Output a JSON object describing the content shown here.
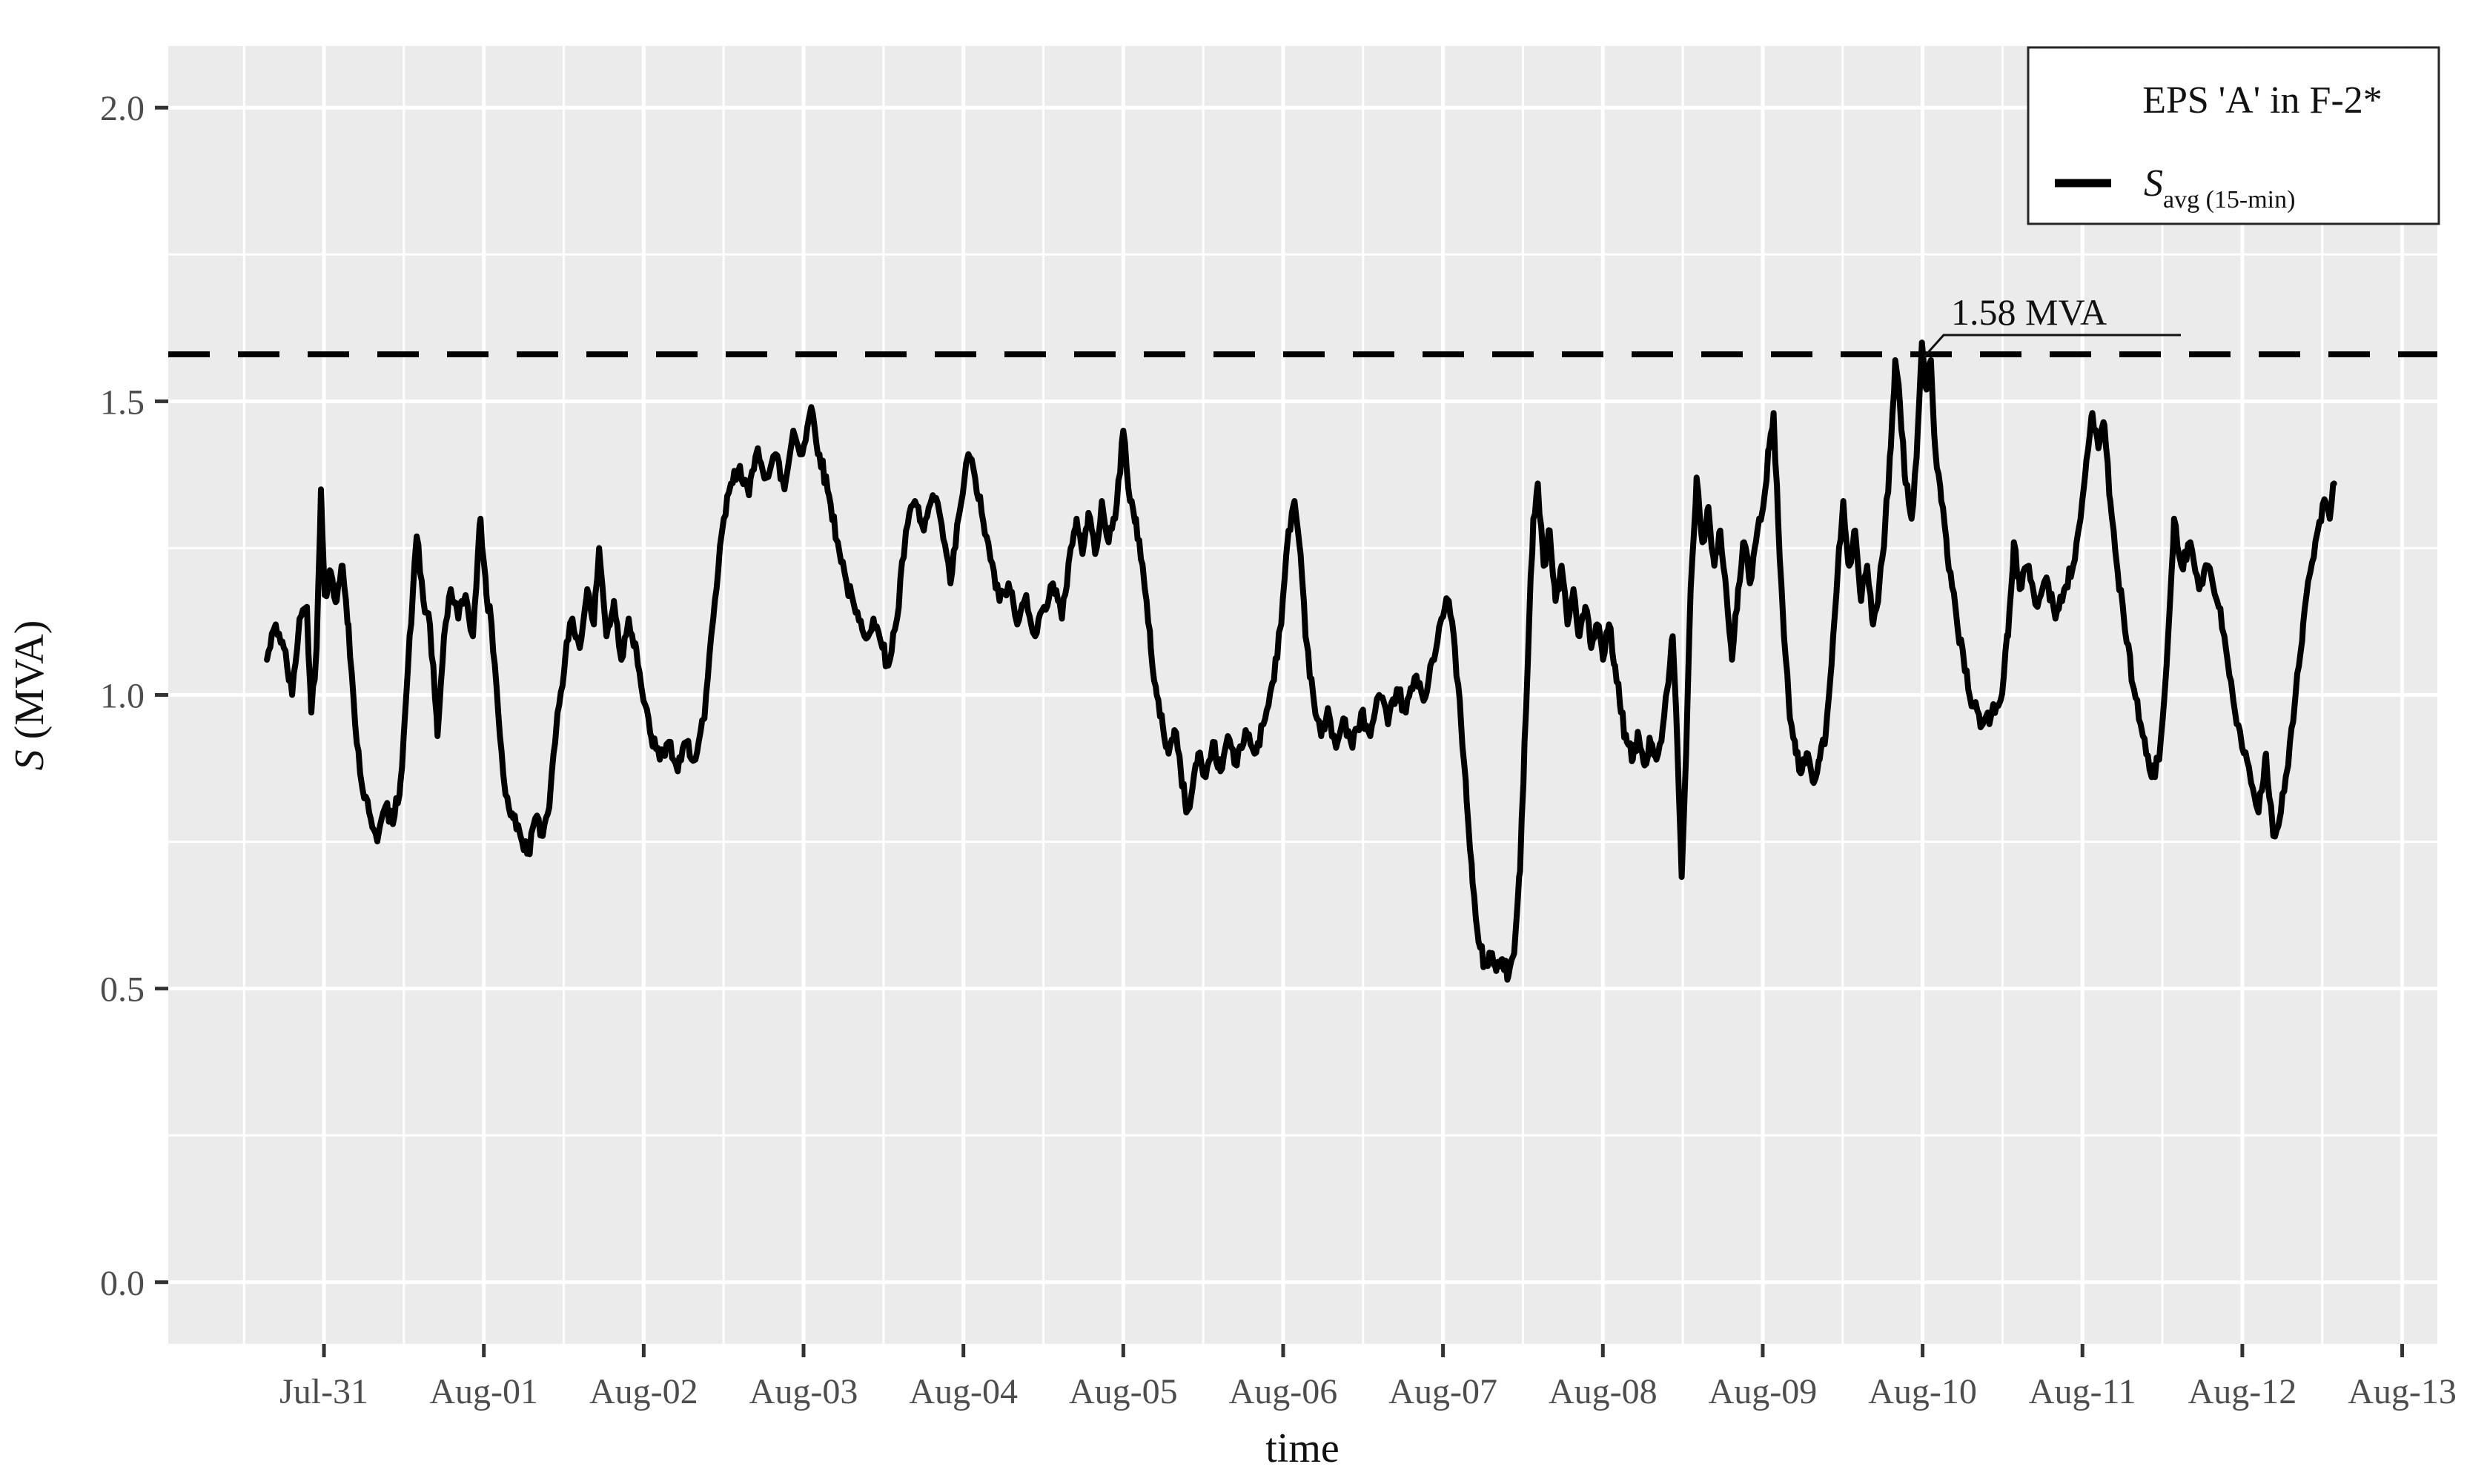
{
  "figure": {
    "background": "#FFFFFF",
    "panel_color": "#EBEBEB",
    "grid_color": "#FFFFFF",
    "series_color": "#000000",
    "tick_label_color": "#4D4D4D"
  },
  "axes": {
    "x_title": "time",
    "y_title_main": "S",
    "y_title_rest": " (MVA)",
    "y_tick_labels": [
      "0.0",
      "0.5",
      "1.0",
      "1.5",
      "2.0"
    ]
  },
  "legend": {
    "title": "EPS 'A' in F-2*",
    "entry_main": "S",
    "entry_sub": "avg (15-min)"
  },
  "annotation": {
    "label": "1.58 MVA"
  },
  "chart_data": {
    "type": "line",
    "title": "",
    "xlabel": "time",
    "ylabel": "S (MVA)",
    "legend_position": "top-right",
    "grid": true,
    "x_unit": "days since Jul-31 00:00",
    "categories": [
      "Jul-31",
      "Aug-01",
      "Aug-02",
      "Aug-03",
      "Aug-04",
      "Aug-05",
      "Aug-06",
      "Aug-07",
      "Aug-08",
      "Aug-09",
      "Aug-10",
      "Aug-11",
      "Aug-12",
      "Aug-13"
    ],
    "x_tick_positions": [
      0,
      1,
      2,
      3,
      4,
      5,
      6,
      7,
      8,
      9,
      10,
      11,
      12,
      13
    ],
    "x_minor_positions": [
      -0.5,
      0.5,
      1.5,
      2.5,
      3.5,
      4.5,
      5.5,
      6.5,
      7.5,
      8.5,
      9.5,
      10.5,
      11.5,
      12.5
    ],
    "xlim": [
      -0.974,
      13.22
    ],
    "ylim": [
      -0.105,
      2.105
    ],
    "y_major": [
      0.0,
      0.5,
      1.0,
      1.5,
      2.0
    ],
    "y_minor": [
      0.25,
      0.75,
      1.25,
      1.75
    ],
    "reference_line": {
      "value": 1.58,
      "label": "1.58 MVA",
      "style": "dashed"
    },
    "noise_amplitude": 0.015,
    "noise_step_days": 0.0104167,
    "series": [
      {
        "name": "S avg (15-min)",
        "points": [
          [
            -0.357,
            1.06
          ],
          [
            -0.302,
            1.12
          ],
          [
            -0.251,
            1.08
          ],
          [
            -0.199,
            1.0
          ],
          [
            -0.153,
            1.13
          ],
          [
            -0.107,
            1.15
          ],
          [
            -0.079,
            0.97
          ],
          [
            -0.046,
            1.08
          ],
          [
            -0.019,
            1.35
          ],
          [
            0.005,
            1.17
          ],
          [
            0.042,
            1.21
          ],
          [
            0.079,
            1.16
          ],
          [
            0.116,
            1.22
          ],
          [
            0.153,
            1.12
          ],
          [
            0.195,
            0.95
          ],
          [
            0.241,
            0.84
          ],
          [
            0.292,
            0.79
          ],
          [
            0.339,
            0.76
          ],
          [
            0.385,
            0.81
          ],
          [
            0.431,
            0.78
          ],
          [
            0.478,
            0.85
          ],
          [
            0.515,
            1.0
          ],
          [
            0.557,
            1.18
          ],
          [
            0.58,
            1.27
          ],
          [
            0.622,
            1.16
          ],
          [
            0.663,
            1.12
          ],
          [
            0.71,
            0.93
          ],
          [
            0.751,
            1.1
          ],
          [
            0.793,
            1.18
          ],
          [
            0.84,
            1.13
          ],
          [
            0.886,
            1.17
          ],
          [
            0.932,
            1.1
          ],
          [
            0.979,
            1.3
          ],
          [
            1.016,
            1.17
          ],
          [
            1.048,
            1.12
          ],
          [
            1.09,
            0.97
          ],
          [
            1.136,
            0.83
          ],
          [
            1.183,
            0.79
          ],
          [
            1.229,
            0.76
          ],
          [
            1.276,
            0.73
          ],
          [
            1.322,
            0.79
          ],
          [
            1.368,
            0.76
          ],
          [
            1.415,
            0.83
          ],
          [
            1.461,
            0.97
          ],
          [
            1.508,
            1.06
          ],
          [
            1.554,
            1.13
          ],
          [
            1.6,
            1.08
          ],
          [
            1.647,
            1.18
          ],
          [
            1.688,
            1.12
          ],
          [
            1.721,
            1.25
          ],
          [
            1.767,
            1.1
          ],
          [
            1.814,
            1.16
          ],
          [
            1.86,
            1.06
          ],
          [
            1.906,
            1.13
          ],
          [
            1.953,
            1.08
          ],
          [
            1.999,
            0.99
          ],
          [
            2.046,
            0.93
          ],
          [
            2.101,
            0.89
          ],
          [
            2.157,
            0.92
          ],
          [
            2.213,
            0.87
          ],
          [
            2.268,
            0.92
          ],
          [
            2.324,
            0.89
          ],
          [
            2.38,
            0.96
          ],
          [
            2.435,
            1.13
          ],
          [
            2.491,
            1.28
          ],
          [
            2.546,
            1.36
          ],
          [
            2.602,
            1.39
          ],
          [
            2.658,
            1.34
          ],
          [
            2.714,
            1.42
          ],
          [
            2.769,
            1.37
          ],
          [
            2.825,
            1.41
          ],
          [
            2.881,
            1.35
          ],
          [
            2.936,
            1.45
          ],
          [
            2.992,
            1.41
          ],
          [
            3.048,
            1.49
          ],
          [
            3.099,
            1.41
          ],
          [
            3.159,
            1.34
          ],
          [
            3.214,
            1.26
          ],
          [
            3.27,
            1.19
          ],
          [
            3.326,
            1.14
          ],
          [
            3.381,
            1.1
          ],
          [
            3.437,
            1.13
          ],
          [
            3.493,
            1.08
          ],
          [
            3.53,
            1.05
          ],
          [
            3.585,
            1.13
          ],
          [
            3.641,
            1.28
          ],
          [
            3.697,
            1.33
          ],
          [
            3.752,
            1.28
          ],
          [
            3.808,
            1.34
          ],
          [
            3.864,
            1.29
          ],
          [
            3.919,
            1.19
          ],
          [
            3.975,
            1.31
          ],
          [
            4.031,
            1.41
          ],
          [
            4.073,
            1.37
          ],
          [
            4.114,
            1.31
          ],
          [
            4.17,
            1.23
          ],
          [
            4.226,
            1.16
          ],
          [
            4.282,
            1.19
          ],
          [
            4.337,
            1.12
          ],
          [
            4.393,
            1.17
          ],
          [
            4.449,
            1.1
          ],
          [
            4.504,
            1.15
          ],
          [
            4.56,
            1.19
          ],
          [
            4.616,
            1.13
          ],
          [
            4.671,
            1.25
          ],
          [
            4.708,
            1.3
          ],
          [
            4.745,
            1.24
          ],
          [
            4.782,
            1.31
          ],
          [
            4.824,
            1.24
          ],
          [
            4.866,
            1.33
          ],
          [
            4.908,
            1.26
          ],
          [
            4.949,
            1.3
          ],
          [
            5.0,
            1.45
          ],
          [
            5.042,
            1.33
          ],
          [
            5.079,
            1.3
          ],
          [
            5.135,
            1.18
          ],
          [
            5.172,
            1.08
          ],
          [
            5.209,
            1.0
          ],
          [
            5.246,
            0.95
          ],
          [
            5.283,
            0.9
          ],
          [
            5.32,
            0.94
          ],
          [
            5.357,
            0.88
          ],
          [
            5.394,
            0.8
          ],
          [
            5.432,
            0.84
          ],
          [
            5.469,
            0.9
          ],
          [
            5.515,
            0.86
          ],
          [
            5.561,
            0.92
          ],
          [
            5.608,
            0.87
          ],
          [
            5.654,
            0.93
          ],
          [
            5.71,
            0.88
          ],
          [
            5.765,
            0.94
          ],
          [
            5.821,
            0.9
          ],
          [
            5.877,
            0.95
          ],
          [
            5.932,
            1.02
          ],
          [
            5.988,
            1.12
          ],
          [
            6.034,
            1.28
          ],
          [
            6.071,
            1.33
          ],
          [
            6.109,
            1.24
          ],
          [
            6.146,
            1.09
          ],
          [
            6.192,
            0.99
          ],
          [
            6.238,
            0.93
          ],
          [
            6.285,
            0.97
          ],
          [
            6.331,
            0.91
          ],
          [
            6.377,
            0.96
          ],
          [
            6.433,
            0.91
          ],
          [
            6.489,
            0.97
          ],
          [
            6.545,
            0.93
          ],
          [
            6.6,
            1.0
          ],
          [
            6.656,
            0.95
          ],
          [
            6.712,
            1.01
          ],
          [
            6.767,
            0.97
          ],
          [
            6.823,
            1.03
          ],
          [
            6.879,
            0.99
          ],
          [
            6.934,
            1.06
          ],
          [
            6.99,
            1.13
          ],
          [
            7.036,
            1.16
          ],
          [
            7.074,
            1.08
          ],
          [
            7.111,
            0.96
          ],
          [
            7.148,
            0.82
          ],
          [
            7.185,
            0.68
          ],
          [
            7.222,
            0.58
          ],
          [
            7.259,
            0.54
          ],
          [
            7.296,
            0.56
          ],
          [
            7.333,
            0.53
          ],
          [
            7.371,
            0.55
          ],
          [
            7.408,
            0.52
          ],
          [
            7.445,
            0.56
          ],
          [
            7.482,
            0.7
          ],
          [
            7.51,
            0.92
          ],
          [
            7.538,
            1.12
          ],
          [
            7.565,
            1.3
          ],
          [
            7.593,
            1.36
          ],
          [
            7.63,
            1.22
          ],
          [
            7.667,
            1.28
          ],
          [
            7.704,
            1.16
          ],
          [
            7.742,
            1.22
          ],
          [
            7.779,
            1.12
          ],
          [
            7.816,
            1.18
          ],
          [
            7.853,
            1.1
          ],
          [
            7.89,
            1.15
          ],
          [
            7.927,
            1.08
          ],
          [
            7.964,
            1.12
          ],
          [
            8.001,
            1.06
          ],
          [
            8.038,
            1.12
          ],
          [
            8.076,
            1.05
          ],
          [
            8.113,
            0.97
          ],
          [
            8.15,
            0.92
          ],
          [
            8.187,
            0.89
          ],
          [
            8.224,
            0.93
          ],
          [
            8.261,
            0.88
          ],
          [
            8.298,
            0.92
          ],
          [
            8.335,
            0.89
          ],
          [
            8.373,
            0.94
          ],
          [
            8.41,
            1.02
          ],
          [
            8.437,
            1.1
          ],
          [
            8.465,
            0.92
          ],
          [
            8.493,
            0.69
          ],
          [
            8.521,
            0.9
          ],
          [
            8.549,
            1.18
          ],
          [
            8.586,
            1.37
          ],
          [
            8.623,
            1.26
          ],
          [
            8.66,
            1.32
          ],
          [
            8.697,
            1.22
          ],
          [
            8.734,
            1.28
          ],
          [
            8.771,
            1.18
          ],
          [
            8.808,
            1.06
          ],
          [
            8.846,
            1.18
          ],
          [
            8.883,
            1.26
          ],
          [
            8.92,
            1.19
          ],
          [
            8.957,
            1.26
          ],
          [
            9.003,
            1.32
          ],
          [
            9.04,
            1.42
          ],
          [
            9.068,
            1.48
          ],
          [
            9.096,
            1.3
          ],
          [
            9.133,
            1.1
          ],
          [
            9.17,
            0.96
          ],
          [
            9.207,
            0.9
          ],
          [
            9.244,
            0.87
          ],
          [
            9.282,
            0.9
          ],
          [
            9.319,
            0.85
          ],
          [
            9.356,
            0.89
          ],
          [
            9.393,
            0.93
          ],
          [
            9.43,
            1.05
          ],
          [
            9.467,
            1.2
          ],
          [
            9.504,
            1.33
          ],
          [
            9.541,
            1.22
          ],
          [
            9.578,
            1.28
          ],
          [
            9.615,
            1.16
          ],
          [
            9.653,
            1.22
          ],
          [
            9.69,
            1.12
          ],
          [
            9.727,
            1.18
          ],
          [
            9.764,
            1.28
          ],
          [
            9.801,
            1.42
          ],
          [
            9.829,
            1.57
          ],
          [
            9.857,
            1.5
          ],
          [
            9.894,
            1.36
          ],
          [
            9.931,
            1.3
          ],
          [
            9.968,
            1.44
          ],
          [
            9.996,
            1.6
          ],
          [
            10.024,
            1.52
          ],
          [
            10.052,
            1.57
          ],
          [
            10.079,
            1.42
          ],
          [
            10.117,
            1.33
          ],
          [
            10.154,
            1.24
          ],
          [
            10.209,
            1.14
          ],
          [
            10.265,
            1.04
          ],
          [
            10.321,
            0.98
          ],
          [
            10.376,
            0.95
          ],
          [
            10.432,
            0.97
          ],
          [
            10.487,
            0.99
          ],
          [
            10.534,
            1.1
          ],
          [
            10.571,
            1.26
          ],
          [
            10.608,
            1.18
          ],
          [
            10.664,
            1.22
          ],
          [
            10.719,
            1.15
          ],
          [
            10.775,
            1.2
          ],
          [
            10.831,
            1.13
          ],
          [
            10.886,
            1.18
          ],
          [
            10.942,
            1.22
          ],
          [
            10.988,
            1.3
          ],
          [
            11.025,
            1.4
          ],
          [
            11.062,
            1.48
          ],
          [
            11.1,
            1.42
          ],
          [
            11.137,
            1.46
          ],
          [
            11.174,
            1.33
          ],
          [
            11.22,
            1.21
          ],
          [
            11.266,
            1.11
          ],
          [
            11.322,
            1.01
          ],
          [
            11.378,
            0.93
          ],
          [
            11.433,
            0.86
          ],
          [
            11.48,
            0.89
          ],
          [
            11.526,
            1.05
          ],
          [
            11.573,
            1.3
          ],
          [
            11.619,
            1.22
          ],
          [
            11.675,
            1.26
          ],
          [
            11.73,
            1.18
          ],
          [
            11.786,
            1.22
          ],
          [
            11.842,
            1.16
          ],
          [
            11.888,
            1.1
          ],
          [
            11.944,
            0.99
          ],
          [
            11.999,
            0.91
          ],
          [
            12.055,
            0.85
          ],
          [
            12.101,
            0.8
          ],
          [
            12.148,
            0.9
          ],
          [
            12.194,
            0.76
          ],
          [
            12.241,
            0.8
          ],
          [
            12.287,
            0.88
          ],
          [
            12.333,
            1.0
          ],
          [
            12.38,
            1.12
          ],
          [
            12.426,
            1.21
          ],
          [
            12.472,
            1.28
          ],
          [
            12.519,
            1.33
          ],
          [
            12.547,
            1.3
          ],
          [
            12.574,
            1.36
          ]
        ]
      }
    ]
  }
}
